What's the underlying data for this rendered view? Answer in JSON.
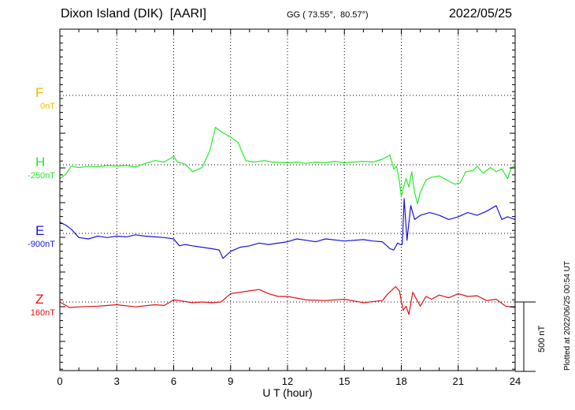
{
  "header": {
    "station": "Dixon Island (DIK)  [AARI]",
    "coords": "GG ( 73.55°,  80.57°)",
    "date": "2022/05/25"
  },
  "side_note": "Plotted at 2022/06/25 00:54 UT",
  "scale_label": "500 nT",
  "chart_data": {
    "type": "line",
    "xlabel": "U T (hour)",
    "xlim": [
      0,
      24
    ],
    "x_ticks": [
      "0",
      "3",
      "6",
      "9",
      "12",
      "15",
      "18",
      "21",
      "24"
    ],
    "y_units": "nT",
    "scale_bar_nT": 500,
    "grid": true,
    "series": [
      {
        "name": "F",
        "baseline_label": "0nT",
        "color": "#f5b800",
        "x": [],
        "values": []
      },
      {
        "name": "H",
        "baseline_label": "-250nT",
        "color": "#22ee22",
        "x": [
          0,
          0.3,
          0.6,
          1,
          1.5,
          2,
          2.5,
          3,
          3.5,
          4,
          4.5,
          5,
          5.5,
          6,
          6.2,
          6.6,
          7,
          7.5,
          7.9,
          8.2,
          8.6,
          9,
          9.4,
          9.8,
          10.2,
          10.8,
          11.2,
          12,
          12.5,
          13,
          13.5,
          14,
          14.5,
          15,
          15.5,
          16,
          16.5,
          17,
          17.4,
          17.6,
          17.75,
          17.9,
          18.0,
          18.1,
          18.25,
          18.4,
          18.55,
          18.7,
          18.85,
          19,
          19.3,
          19.6,
          20,
          20.4,
          20.8,
          21.1,
          21.4,
          21.8,
          22,
          22.3,
          22.7,
          23,
          23.3,
          23.6,
          23.8,
          24
        ],
        "values": [
          -100,
          -70,
          -10,
          -20,
          -10,
          -15,
          -5,
          -10,
          -5,
          -15,
          10,
          30,
          20,
          60,
          20,
          5,
          -50,
          -20,
          100,
          270,
          230,
          200,
          160,
          30,
          20,
          30,
          20,
          15,
          20,
          10,
          20,
          15,
          25,
          15,
          20,
          25,
          20,
          40,
          70,
          -30,
          -10,
          -120,
          -230,
          -170,
          -100,
          -160,
          -50,
          -200,
          -280,
          -200,
          -110,
          -90,
          -80,
          -110,
          -140,
          -130,
          -50,
          -40,
          -10,
          -60,
          -20,
          -50,
          -30,
          -100,
          -20,
          -10
        ],
        "val_range_note": "values in nT relative to baseline"
      },
      {
        "name": "E",
        "baseline_label": "-900nT",
        "color": "#1616dd",
        "x": [
          0,
          0.3,
          0.6,
          1,
          1.5,
          2,
          2.5,
          3,
          3.5,
          4,
          4.5,
          5,
          5.5,
          6,
          6.3,
          6.6,
          7,
          7.5,
          8,
          8.4,
          8.6,
          9,
          9.5,
          10,
          10.5,
          11,
          12,
          12.5,
          13,
          13.5,
          14,
          15,
          16,
          16.5,
          17,
          17.4,
          17.6,
          17.8,
          17.95,
          18.05,
          18.15,
          18.3,
          18.5,
          18.7,
          19,
          19.5,
          20,
          20.5,
          21,
          21.5,
          22,
          22.5,
          23,
          23.3,
          23.6,
          24
        ],
        "values": [
          80,
          60,
          30,
          -30,
          -40,
          -20,
          -30,
          -20,
          -25,
          -10,
          -20,
          -25,
          -30,
          -40,
          -90,
          -80,
          -90,
          -100,
          -110,
          -120,
          -180,
          -130,
          -100,
          -90,
          -70,
          -80,
          -60,
          -40,
          -50,
          -60,
          -40,
          -55,
          -45,
          -55,
          -60,
          -110,
          -120,
          -70,
          -80,
          -80,
          250,
          -50,
          200,
          100,
          130,
          150,
          130,
          100,
          120,
          150,
          130,
          160,
          200,
          100,
          120,
          100
        ]
      },
      {
        "name": "Z",
        "baseline_label": "160nT",
        "color": "#e01010",
        "x": [
          0,
          0.5,
          1,
          2,
          3,
          4,
          5,
          5.5,
          6,
          6.3,
          7,
          7.5,
          8,
          8.5,
          9,
          9.5,
          10,
          10.5,
          11,
          11.5,
          12,
          13,
          14,
          15,
          16,
          17,
          17.3,
          17.7,
          17.9,
          18.1,
          18.25,
          18.4,
          18.6,
          18.8,
          19,
          19.3,
          19.6,
          20,
          20.5,
          21,
          21.5,
          22,
          22.5,
          23,
          23.5,
          24
        ],
        "values": [
          0,
          -40,
          -35,
          -30,
          -20,
          -35,
          -20,
          -25,
          15,
          10,
          -5,
          0,
          -5,
          0,
          60,
          70,
          80,
          90,
          60,
          40,
          40,
          15,
          10,
          20,
          -5,
          10,
          60,
          110,
          80,
          -60,
          -30,
          -90,
          70,
          20,
          -30,
          40,
          20,
          50,
          30,
          60,
          40,
          45,
          10,
          20,
          -30,
          -40
        ]
      }
    ]
  }
}
